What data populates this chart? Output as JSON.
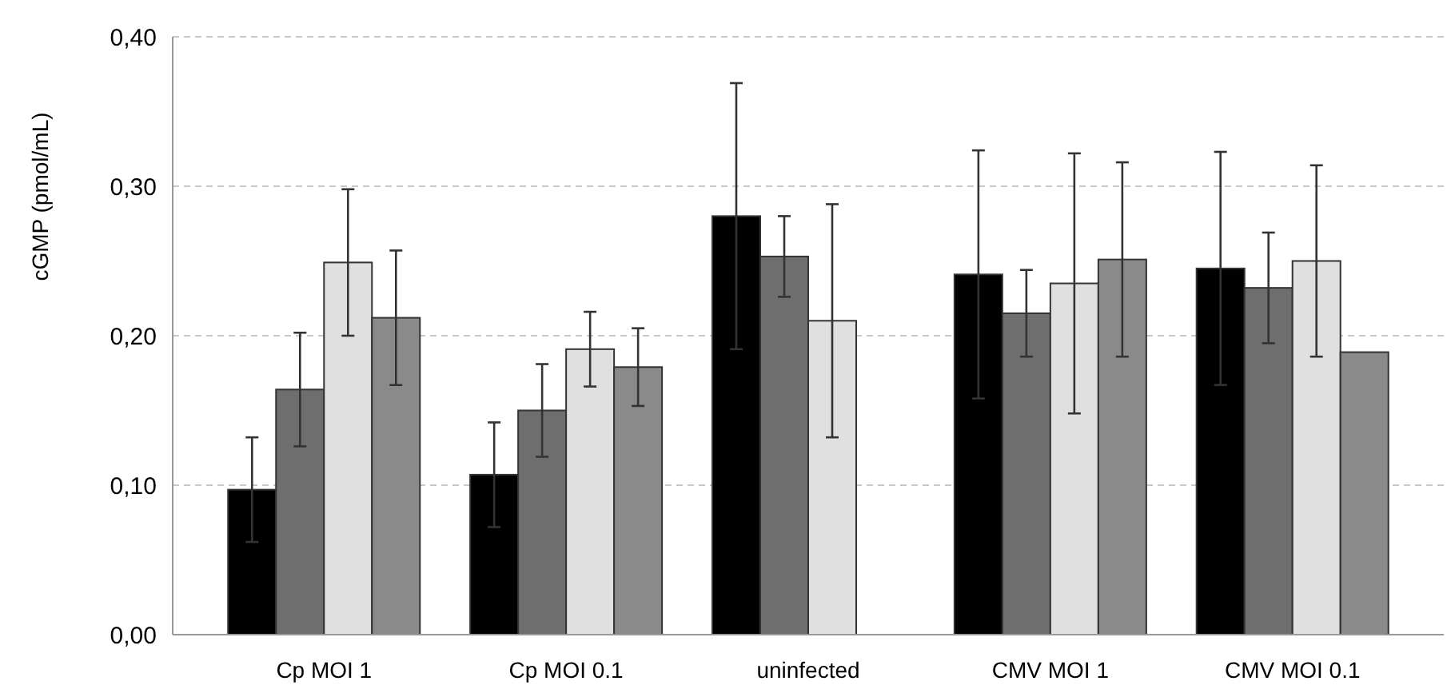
{
  "chart_data": {
    "type": "bar",
    "ylabel": "cGMP (pmol/mL)",
    "categories": [
      "Cp MOI 1",
      "Cp MOI 0.1",
      "uninfected",
      "CMV MOI 1",
      "CMV MOI 0.1"
    ],
    "series": [
      {
        "color": "#000000",
        "values": [
          0.097,
          0.107,
          0.28,
          0.241,
          0.245
        ],
        "errors": [
          0.035,
          0.035,
          0.089,
          0.083,
          0.078
        ]
      },
      {
        "color": "#6e6e6e",
        "values": [
          0.164,
          0.15,
          0.253,
          0.215,
          0.232
        ],
        "errors": [
          0.038,
          0.031,
          0.027,
          0.029,
          0.037
        ]
      },
      {
        "color": "#e0e0e0",
        "values": [
          0.249,
          0.191,
          0.21,
          0.235,
          0.25
        ],
        "errors": [
          0.049,
          0.025,
          0.078,
          0.087,
          0.064
        ]
      },
      {
        "color": "#8a8a8a",
        "values": [
          0.212,
          0.179,
          null,
          0.251,
          0.189
        ],
        "errors": [
          0.045,
          0.026,
          null,
          0.065,
          null
        ]
      }
    ],
    "ylim": [
      0,
      0.4
    ],
    "yticks": [
      {
        "value": 0,
        "label": "0,00"
      },
      {
        "value": 0.1,
        "label": "0,10"
      },
      {
        "value": 0.2,
        "label": "0,20"
      },
      {
        "value": 0.3,
        "label": "0,30"
      },
      {
        "value": 0.4,
        "label": "0,40"
      }
    ],
    "grid": "y"
  }
}
